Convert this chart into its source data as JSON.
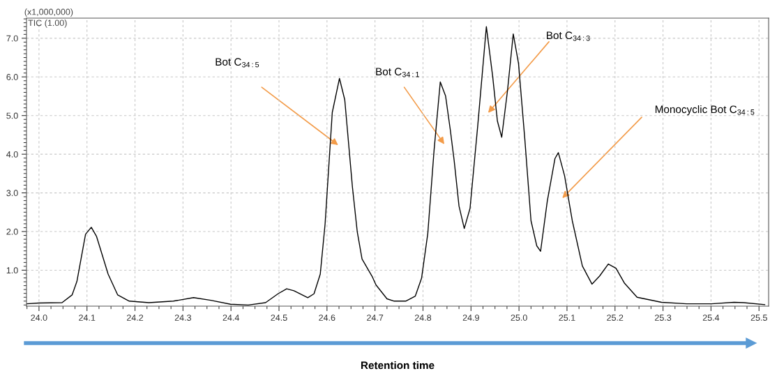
{
  "chart_data": {
    "type": "line",
    "xlabel": "Retention time",
    "annotations": [
      "(x1,000,000)",
      "TIC (1.00)",
      "Bot C$_{34:5}$",
      "Bot C$_{34:1}$",
      "Bot C$_{34:3}$",
      "Monocyclic Bot C$_{34:5}$"
    ],
    "x": [
      23.974,
      24.0,
      24.048,
      24.069,
      24.079,
      24.097,
      24.109,
      24.12,
      24.144,
      24.164,
      24.188,
      24.229,
      24.28,
      24.322,
      24.358,
      24.399,
      24.436,
      24.472,
      24.498,
      24.516,
      24.531,
      24.56,
      24.573,
      24.586,
      24.596,
      24.611,
      24.626,
      24.637,
      24.653,
      24.663,
      24.673,
      24.694,
      24.702,
      24.725,
      24.74,
      24.764,
      24.784,
      24.797,
      24.81,
      24.823,
      24.836,
      24.847,
      24.857,
      24.865,
      24.875,
      24.886,
      24.898,
      24.914,
      24.932,
      24.945,
      24.955,
      24.964,
      24.976,
      24.988,
      24.999,
      25.012,
      25.025,
      25.037,
      25.045,
      25.059,
      25.075,
      25.082,
      25.095,
      25.111,
      25.132,
      25.152,
      25.168,
      25.186,
      25.202,
      25.22,
      25.246,
      25.297,
      25.349,
      25.401,
      25.448,
      25.468,
      25.512
    ],
    "series": [
      {
        "color": "#000000",
        "values": [
          0.13,
          0.15,
          0.16,
          0.36,
          0.71,
          1.93,
          2.11,
          1.87,
          0.9,
          0.36,
          0.2,
          0.16,
          0.2,
          0.29,
          0.22,
          0.12,
          0.1,
          0.16,
          0.39,
          0.52,
          0.47,
          0.29,
          0.39,
          0.9,
          2.19,
          5.08,
          5.96,
          5.41,
          3.15,
          2.0,
          1.29,
          0.84,
          0.62,
          0.26,
          0.2,
          0.2,
          0.33,
          0.79,
          1.95,
          4.09,
          5.87,
          5.51,
          4.62,
          3.83,
          2.66,
          2.08,
          2.6,
          4.73,
          7.3,
          6.03,
          4.86,
          4.44,
          5.64,
          7.11,
          6.35,
          4.41,
          2.28,
          1.63,
          1.49,
          2.79,
          3.89,
          4.04,
          3.44,
          2.28,
          1.11,
          0.64,
          0.85,
          1.16,
          1.05,
          0.66,
          0.3,
          0.17,
          0.13,
          0.13,
          0.17,
          0.16,
          0.11
        ]
      }
    ],
    "xlim": [
      23.974,
      25.52
    ],
    "ylim": [
      0.07,
      7.52
    ],
    "xticks": [
      {
        "value": 24.0,
        "label": "24.0"
      },
      {
        "value": 24.1,
        "label": "24.1"
      },
      {
        "value": 24.2,
        "label": "24.2"
      },
      {
        "value": 24.3,
        "label": "24.3"
      },
      {
        "value": 24.4,
        "label": "24.4"
      },
      {
        "value": 24.5,
        "label": "24.5"
      },
      {
        "value": 24.6,
        "label": "24.6"
      },
      {
        "value": 24.7,
        "label": "24.7"
      },
      {
        "value": 24.8,
        "label": "24.8"
      },
      {
        "value": 24.9,
        "label": "24.9"
      },
      {
        "value": 25.0,
        "label": "25.0"
      },
      {
        "value": 25.1,
        "label": "25.1"
      },
      {
        "value": 25.2,
        "label": "25.2"
      },
      {
        "value": 25.3,
        "label": "25.3"
      },
      {
        "value": 25.4,
        "label": "25.4"
      },
      {
        "value": 25.5,
        "label": "25.5"
      }
    ],
    "yticks": [
      {
        "value": 1.0,
        "label": "1.0"
      },
      {
        "value": 2.0,
        "label": "2.0"
      },
      {
        "value": 3.0,
        "label": "3.0"
      },
      {
        "value": 4.0,
        "label": "4.0"
      },
      {
        "value": 5.0,
        "label": "5.0"
      },
      {
        "value": 6.0,
        "label": "6.0"
      },
      {
        "value": 7.0,
        "label": "7.0"
      }
    ],
    "grid": true,
    "legend": false,
    "marker": "none",
    "line_style": "solid"
  }
}
